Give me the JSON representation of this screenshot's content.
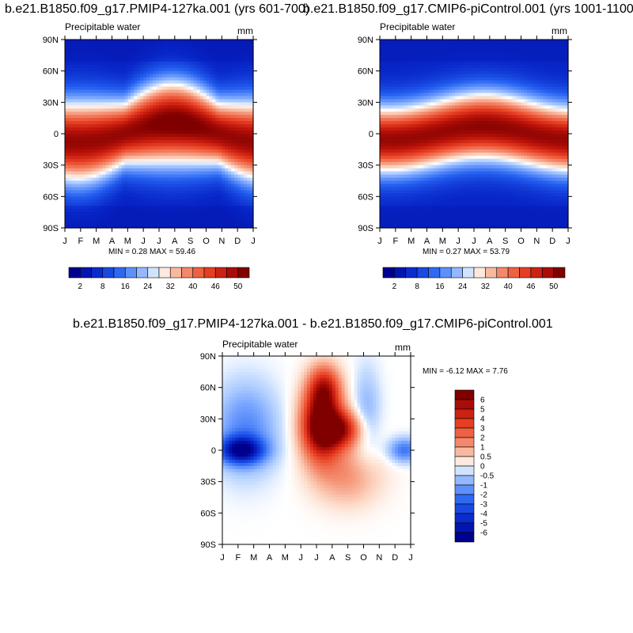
{
  "colors": {
    "blue_dark": "#00008f",
    "blue_mid": "#1f57f0",
    "blue_light": "#bcd6ff",
    "neutral": "#ffffff",
    "red_light": "#fcd1bd",
    "red_mid": "#ee4d2a",
    "red_dark": "#800000"
  },
  "panels": [
    {
      "title": "b.e21.B1850.f09_g17.PMIP4-127ka.001 (yrs 601-700)",
      "variable": "Precipitable water",
      "units": "mm",
      "minmax": "MIN =   0.28 MAX =  59.46",
      "colorbar_labels": [
        "2",
        "8",
        "16",
        "24",
        "32",
        "40",
        "46",
        "50"
      ]
    },
    {
      "title": "b.e21.B1850.f09_g17.CMIP6-piControl.001 (yrs 1001-1100)",
      "variable": "Precipitable water",
      "units": "mm",
      "minmax": "MIN =   0.27 MAX =  53.79",
      "colorbar_labels": [
        "2",
        "8",
        "16",
        "24",
        "32",
        "40",
        "46",
        "50"
      ]
    },
    {
      "title": "b.e21.B1850.f09_g17.PMIP4-127ka.001 - b.e21.B1850.f09_g17.CMIP6-piControl.001",
      "variable": "Precipitable water",
      "units": "mm",
      "minmax": "MIN =  -6.12 MAX =   7.76",
      "colorbar_labels": [
        "6",
        "5",
        "4",
        "3",
        "2",
        "1",
        "0.5",
        "0",
        "-0.5",
        "-1",
        "-2",
        "-3",
        "-4",
        "-5",
        "-6"
      ]
    }
  ],
  "chart_data": [
    {
      "type": "heatmap",
      "title": "b.e21.B1850.f09_g17.PMIP4-127ka.001 (yrs 601-700)",
      "subtitle": "Precipitable water",
      "units": "mm",
      "x_ticks": [
        "J",
        "F",
        "M",
        "A",
        "M",
        "J",
        "J",
        "A",
        "S",
        "O",
        "N",
        "D",
        "J"
      ],
      "y_ticks": [
        "90N",
        "60N",
        "30N",
        "0",
        "30S",
        "60S",
        "90S"
      ],
      "ylim": [
        -90,
        90
      ],
      "levels": [
        2,
        5,
        8,
        12,
        16,
        20,
        24,
        28,
        32,
        36,
        40,
        43,
        46,
        48,
        50
      ],
      "min": 0.28,
      "max": 59.46,
      "peak": {
        "lat": 8,
        "month_index": 7.0,
        "value": 59
      }
    },
    {
      "type": "heatmap",
      "title": "b.e21.B1850.f09_g17.CMIP6-piControl.001 (yrs 1001-1100)",
      "subtitle": "Precipitable water",
      "units": "mm",
      "x_ticks": [
        "J",
        "F",
        "M",
        "A",
        "M",
        "J",
        "J",
        "A",
        "S",
        "O",
        "N",
        "D",
        "J"
      ],
      "y_ticks": [
        "90N",
        "60N",
        "30N",
        "0",
        "30S",
        "60S",
        "90S"
      ],
      "ylim": [
        -90,
        90
      ],
      "levels": [
        2,
        5,
        8,
        12,
        16,
        20,
        24,
        28,
        32,
        36,
        40,
        43,
        46,
        48,
        50
      ],
      "min": 0.27,
      "max": 53.79,
      "peak": {
        "lat": 5,
        "month_index": 7.0,
        "value": 53
      }
    },
    {
      "type": "heatmap",
      "title": "b.e21.B1850.f09_g17.PMIP4-127ka.001 - b.e21.B1850.f09_g17.CMIP6-piControl.001",
      "subtitle": "Precipitable water",
      "units": "mm",
      "x_ticks": [
        "J",
        "F",
        "M",
        "A",
        "M",
        "J",
        "J",
        "A",
        "S",
        "O",
        "N",
        "D",
        "J"
      ],
      "y_ticks": [
        "90N",
        "60N",
        "30N",
        "0",
        "30S",
        "60S",
        "90S"
      ],
      "ylim": [
        -90,
        90
      ],
      "levels": [
        -6,
        -5,
        -4,
        -3,
        -2,
        -1,
        -0.5,
        0,
        0.5,
        1,
        2,
        3,
        4,
        5,
        6
      ],
      "min": -6.12,
      "max": 7.76
    }
  ],
  "axis": {
    "x_ticks": [
      "J",
      "F",
      "M",
      "A",
      "M",
      "J",
      "J",
      "A",
      "S",
      "O",
      "N",
      "D",
      "J"
    ],
    "y_ticks": [
      "90N",
      "60N",
      "30N",
      "0",
      "30S",
      "60S",
      "90S"
    ]
  }
}
